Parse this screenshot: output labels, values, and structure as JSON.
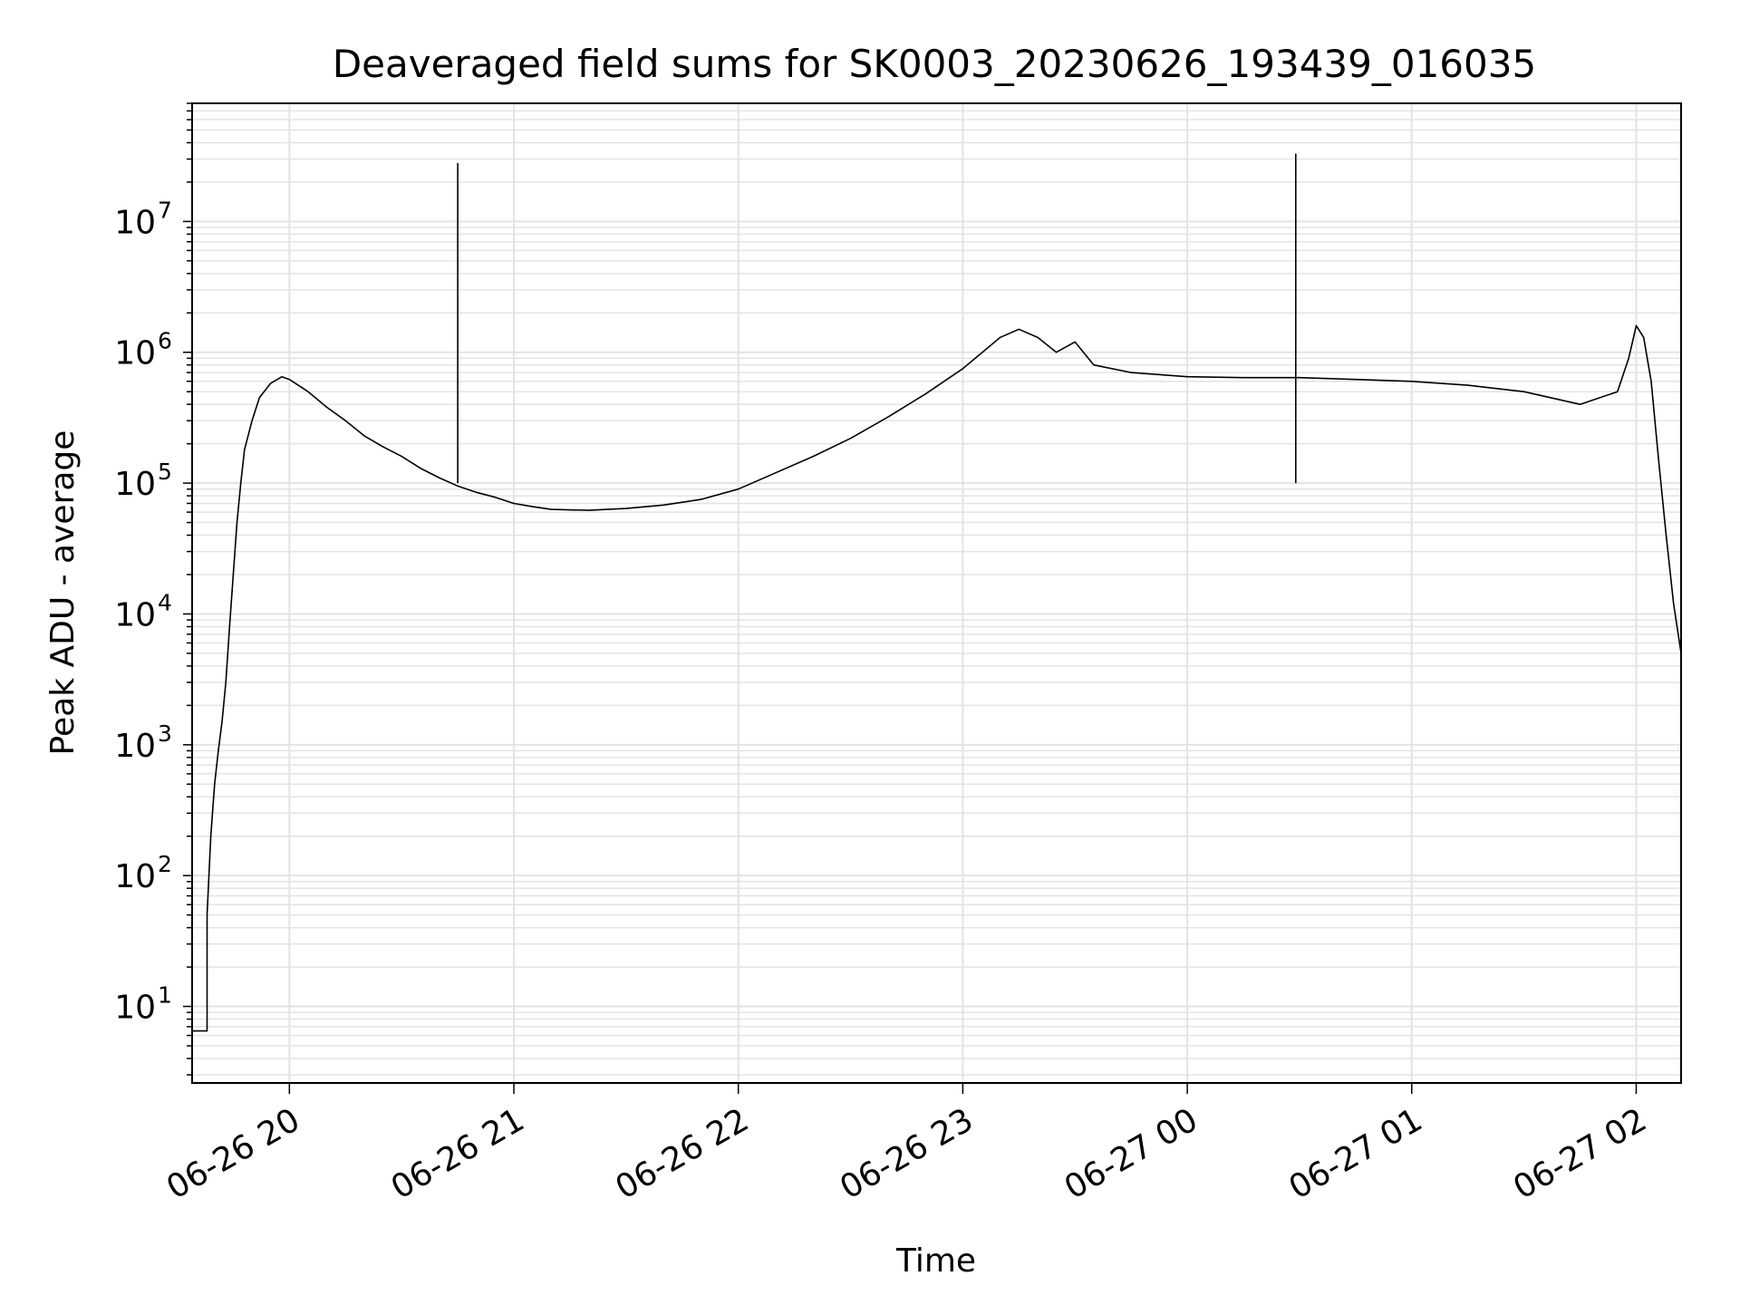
{
  "chart_data": {
    "type": "line",
    "title": "Deaveraged field sums for SK0003_20230626_193439_016035",
    "xlabel": "Time",
    "ylabel": "Peak ADU - average",
    "yscale": "log",
    "ylim": [
      2.6,
      80000000
    ],
    "xlim": [
      "2023-06-26 19:34",
      "2023-06-27 02:12"
    ],
    "grid": true,
    "x_ticks": [
      {
        "t": "2023-06-26 20:00",
        "label": "06-26 20"
      },
      {
        "t": "2023-06-26 21:00",
        "label": "06-26 21"
      },
      {
        "t": "2023-06-26 22:00",
        "label": "06-26 22"
      },
      {
        "t": "2023-06-26 23:00",
        "label": "06-26 23"
      },
      {
        "t": "2023-06-27 00:00",
        "label": "06-27 00"
      },
      {
        "t": "2023-06-27 01:00",
        "label": "06-27 01"
      },
      {
        "t": "2023-06-27 02:00",
        "label": "06-27 02"
      }
    ],
    "y_ticks": [
      {
        "value": 10,
        "base": "10",
        "exp": "1"
      },
      {
        "value": 100,
        "base": "10",
        "exp": "2"
      },
      {
        "value": 1000,
        "base": "10",
        "exp": "3"
      },
      {
        "value": 10000,
        "base": "10",
        "exp": "4"
      },
      {
        "value": 100000,
        "base": "10",
        "exp": "5"
      },
      {
        "value": 1000000,
        "base": "10",
        "exp": "6"
      },
      {
        "value": 10000000,
        "base": "10",
        "exp": "7"
      }
    ],
    "series": [
      {
        "color": "#000000",
        "points": [
          [
            "2023-06-26 19:34",
            6.5
          ],
          [
            "2023-06-26 19:38",
            6.5
          ],
          [
            "2023-06-26 19:38",
            50
          ],
          [
            "2023-06-26 19:39",
            200
          ],
          [
            "2023-06-26 19:40",
            500
          ],
          [
            "2023-06-26 19:41",
            900
          ],
          [
            "2023-06-26 19:42",
            1500
          ],
          [
            "2023-06-26 19:43",
            3000
          ],
          [
            "2023-06-26 19:44",
            8000
          ],
          [
            "2023-06-26 19:45",
            20000
          ],
          [
            "2023-06-26 19:46",
            50000
          ],
          [
            "2023-06-26 19:47",
            100000
          ],
          [
            "2023-06-26 19:48",
            180000
          ],
          [
            "2023-06-26 19:50",
            300000
          ],
          [
            "2023-06-26 19:52",
            450000
          ],
          [
            "2023-06-26 19:55",
            580000
          ],
          [
            "2023-06-26 19:58",
            650000
          ],
          [
            "2023-06-26 20:00",
            620000
          ],
          [
            "2023-06-26 20:05",
            500000
          ],
          [
            "2023-06-26 20:10",
            380000
          ],
          [
            "2023-06-26 20:15",
            300000
          ],
          [
            "2023-06-26 20:20",
            230000
          ],
          [
            "2023-06-26 20:25",
            190000
          ],
          [
            "2023-06-26 20:30",
            160000
          ],
          [
            "2023-06-26 20:35",
            130000
          ],
          [
            "2023-06-26 20:40",
            110000
          ],
          [
            "2023-06-26 20:45",
            95000
          ],
          [
            "2023-06-26 20:50",
            85000
          ],
          [
            "2023-06-26 20:55",
            78000
          ],
          [
            "2023-06-26 21:00",
            70000
          ],
          [
            "2023-06-26 21:05",
            66000
          ],
          [
            "2023-06-26 21:10",
            63000
          ],
          [
            "2023-06-26 21:20",
            62000
          ],
          [
            "2023-06-26 21:30",
            64000
          ],
          [
            "2023-06-26 21:40",
            68000
          ],
          [
            "2023-06-26 21:50",
            75000
          ],
          [
            "2023-06-26 22:00",
            90000
          ],
          [
            "2023-06-26 22:10",
            120000
          ],
          [
            "2023-06-26 22:20",
            160000
          ],
          [
            "2023-06-26 22:30",
            220000
          ],
          [
            "2023-06-26 22:40",
            320000
          ],
          [
            "2023-06-26 22:50",
            480000
          ],
          [
            "2023-06-26 23:00",
            750000
          ],
          [
            "2023-06-26 23:10",
            1300000
          ],
          [
            "2023-06-26 23:15",
            1500000
          ],
          [
            "2023-06-26 23:20",
            1300000
          ],
          [
            "2023-06-26 23:25",
            1000000
          ],
          [
            "2023-06-26 23:30",
            1200000
          ],
          [
            "2023-06-26 23:35",
            800000
          ],
          [
            "2023-06-26 23:45",
            700000
          ],
          [
            "2023-06-27 00:00",
            650000
          ],
          [
            "2023-06-27 00:15",
            640000
          ],
          [
            "2023-06-27 00:30",
            640000
          ],
          [
            "2023-06-27 00:45",
            620000
          ],
          [
            "2023-06-27 01:00",
            600000
          ],
          [
            "2023-06-27 01:15",
            560000
          ],
          [
            "2023-06-27 01:30",
            500000
          ],
          [
            "2023-06-27 01:45",
            400000
          ],
          [
            "2023-06-27 01:55",
            500000
          ],
          [
            "2023-06-27 01:58",
            900000
          ],
          [
            "2023-06-27 02:00",
            1600000
          ],
          [
            "2023-06-27 02:02",
            1300000
          ],
          [
            "2023-06-27 02:04",
            600000
          ],
          [
            "2023-06-27 02:06",
            150000
          ],
          [
            "2023-06-27 02:08",
            40000
          ],
          [
            "2023-06-27 02:10",
            12000
          ],
          [
            "2023-06-27 02:12",
            5000
          ]
        ]
      }
    ],
    "spikes": [
      {
        "t": "2023-06-26 20:45",
        "value": 28000000
      },
      {
        "t": "2023-06-27 00:29",
        "value": 33000000
      }
    ]
  }
}
